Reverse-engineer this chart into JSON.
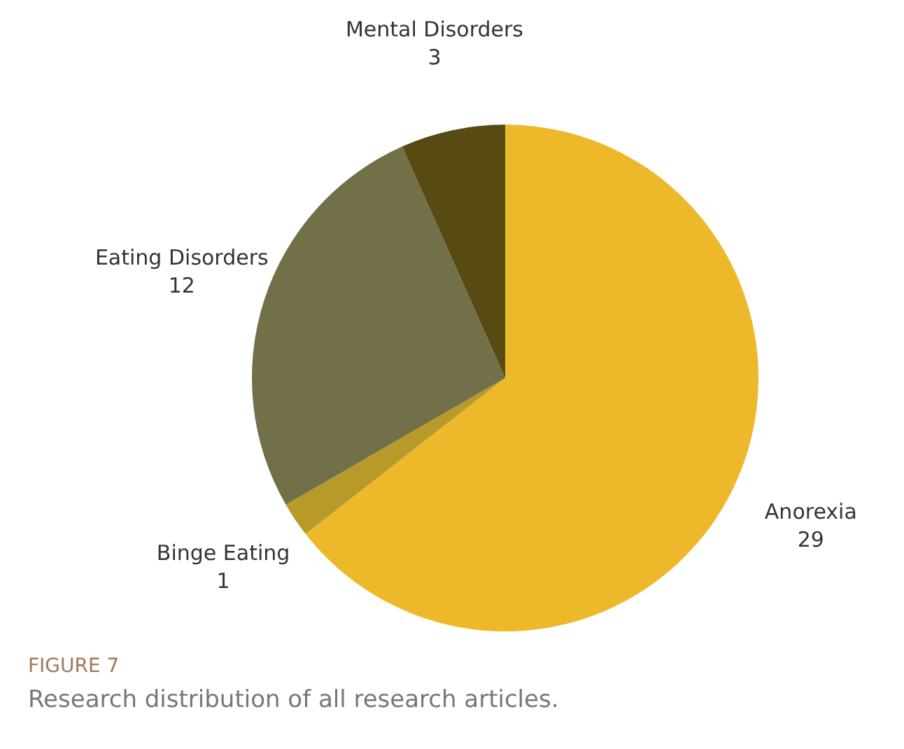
{
  "chart_data": {
    "type": "pie",
    "categories": [
      "Anorexia",
      "Binge Eating",
      "Eating Disorders",
      "Mental Disorders"
    ],
    "values": [
      29,
      1,
      12,
      3
    ],
    "colors": [
      "#edb92b",
      "#b89a2a",
      "#727049",
      "#584a13"
    ],
    "data_labels": true,
    "legend": false,
    "annotations": [
      "FIGURE 7",
      "Research distribution of all research articles."
    ]
  }
}
